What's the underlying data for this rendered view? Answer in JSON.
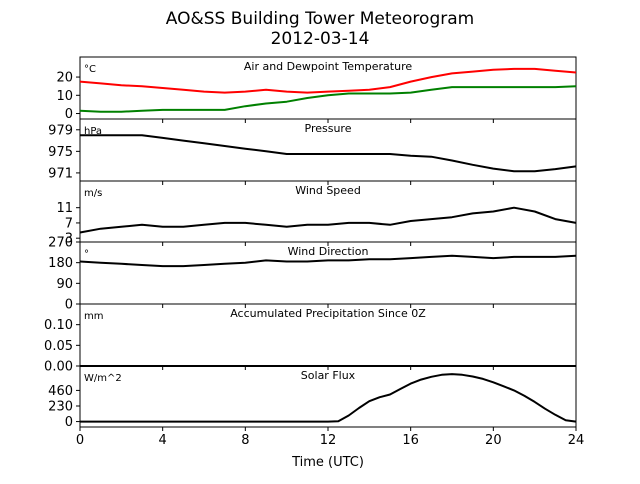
{
  "figure": {
    "title_line1": "AO&SS Building Tower Meteorogram",
    "title_line2": "2012-03-14",
    "xlabel": "Time (UTC)",
    "xlim": [
      0,
      24
    ],
    "xticks": [
      0,
      4,
      8,
      12,
      16,
      20,
      24
    ]
  },
  "chart_data": [
    {
      "type": "line",
      "title": "Air and Dewpoint Temperature",
      "unit": "°C",
      "ylim": [
        -3,
        31
      ],
      "yticks": [
        0,
        10,
        20
      ],
      "series": [
        {
          "color": "#ff0000",
          "x": [
            0,
            1,
            2,
            3,
            4,
            5,
            6,
            7,
            8,
            9,
            10,
            11,
            12,
            13,
            14,
            15,
            16,
            17,
            18,
            19,
            20,
            21,
            22,
            23,
            24
          ],
          "y": [
            17.5,
            16.5,
            15.5,
            15,
            14,
            13,
            12,
            11.5,
            12,
            13,
            12,
            11.5,
            12,
            12.5,
            13,
            14.5,
            17.5,
            20,
            22,
            23,
            24,
            24.5,
            24.5,
            23.5,
            22.5
          ]
        },
        {
          "color": "#008000",
          "x": [
            0,
            1,
            2,
            3,
            4,
            5,
            6,
            7,
            8,
            9,
            10,
            11,
            12,
            13,
            14,
            15,
            16,
            17,
            18,
            19,
            20,
            21,
            22,
            23,
            24
          ],
          "y": [
            1.5,
            1,
            1,
            1.5,
            2,
            2,
            2,
            2,
            4,
            5.5,
            6.5,
            8.5,
            10,
            11,
            11,
            11,
            11.5,
            13,
            14.5,
            14.5,
            14.5,
            14.5,
            14.5,
            14.5,
            15
          ]
        }
      ]
    },
    {
      "type": "line",
      "title": "Pressure",
      "unit": "hPa",
      "ylim": [
        969.5,
        981
      ],
      "yticks": [
        971,
        975,
        979
      ],
      "series": [
        {
          "color": "#000000",
          "x": [
            0,
            1,
            2,
            3,
            4,
            5,
            6,
            7,
            8,
            9,
            10,
            11,
            12,
            13,
            14,
            15,
            16,
            17,
            18,
            19,
            20,
            21,
            22,
            23,
            24
          ],
          "y": [
            978,
            978,
            978,
            978,
            977.5,
            977,
            976.5,
            976,
            975.5,
            975,
            974.5,
            974.5,
            974.5,
            974.5,
            974.5,
            974.5,
            974.2,
            974,
            973.3,
            972.5,
            971.8,
            971.3,
            971.3,
            971.7,
            972.2
          ]
        }
      ]
    },
    {
      "type": "line",
      "title": "Wind Speed",
      "unit": "m/s",
      "ylim": [
        2,
        18
      ],
      "yticks": [
        3,
        7,
        11
      ],
      "series": [
        {
          "color": "#000000",
          "x": [
            0,
            1,
            2,
            3,
            4,
            5,
            6,
            7,
            8,
            9,
            10,
            11,
            12,
            13,
            14,
            15,
            16,
            17,
            18,
            19,
            20,
            21,
            22,
            23,
            24
          ],
          "y": [
            4.5,
            5.5,
            6,
            6.5,
            6,
            6,
            6.5,
            7,
            7,
            6.5,
            6,
            6.5,
            6.5,
            7,
            7,
            6.5,
            7.5,
            8,
            8.5,
            9.5,
            10,
            11,
            10,
            8,
            7
          ]
        }
      ]
    },
    {
      "type": "line",
      "title": "Wind Direction",
      "unit": "°",
      "ylim": [
        0,
        270
      ],
      "yticks": [
        0,
        90,
        180,
        270
      ],
      "series": [
        {
          "color": "#000000",
          "x": [
            0,
            1,
            2,
            3,
            4,
            5,
            6,
            7,
            8,
            9,
            10,
            11,
            12,
            13,
            14,
            15,
            16,
            17,
            18,
            19,
            20,
            21,
            22,
            23,
            24
          ],
          "y": [
            185,
            180,
            175,
            170,
            165,
            165,
            170,
            175,
            180,
            190,
            185,
            185,
            190,
            190,
            195,
            195,
            200,
            205,
            210,
            205,
            200,
            205,
            205,
            205,
            210
          ]
        }
      ]
    },
    {
      "type": "line",
      "title": "Accumulated Precipitation Since 0Z",
      "unit": "mm",
      "ylim": [
        0,
        0.15
      ],
      "yticks": [
        0.0,
        0.05,
        0.1
      ],
      "ytick_labels": [
        "0.00",
        "0.05",
        "0.10"
      ],
      "series": [
        {
          "color": "#000000",
          "x": [
            0,
            24
          ],
          "y": [
            0,
            0
          ]
        }
      ]
    },
    {
      "type": "line",
      "title": "Solar Flux",
      "unit": "W/m^2",
      "ylim": [
        -80,
        820
      ],
      "yticks": [
        0,
        230,
        460
      ],
      "series": [
        {
          "color": "#000000",
          "x": [
            0,
            2,
            4,
            6,
            8,
            10,
            12,
            12.5,
            13,
            13.5,
            14,
            14.5,
            15,
            15.5,
            16,
            16.5,
            17,
            17.5,
            18,
            18.5,
            19,
            19.5,
            20,
            20.5,
            21,
            21.5,
            22,
            22.5,
            23,
            23.5,
            24
          ],
          "y": [
            0,
            0,
            0,
            0,
            0,
            0,
            0,
            5,
            90,
            200,
            300,
            360,
            400,
            480,
            560,
            620,
            660,
            690,
            700,
            690,
            665,
            630,
            580,
            520,
            460,
            380,
            290,
            190,
            100,
            20,
            0
          ]
        }
      ]
    }
  ]
}
